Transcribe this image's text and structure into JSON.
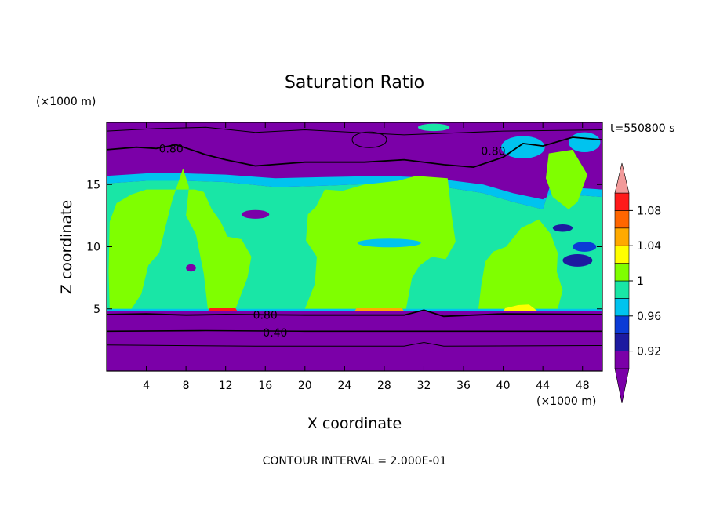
{
  "chart_data": {
    "type": "contour",
    "title": "Saturation Ratio",
    "xlabel": "X coordinate",
    "ylabel": "Z coordinate",
    "x_unit": "(×1000 m)",
    "y_unit": "(×1000 m)",
    "time_label": "t=550800 s",
    "footer": "CONTOUR INTERVAL = 2.000E-01",
    "xlim": [
      0,
      50
    ],
    "ylim": [
      0,
      20
    ],
    "x_ticks": [
      4,
      8,
      12,
      16,
      20,
      24,
      28,
      32,
      36,
      40,
      44,
      48
    ],
    "y_ticks": [
      5,
      10,
      15
    ],
    "contour_labels": [
      {
        "text": "0.80",
        "x": 6.5,
        "z": 17.9
      },
      {
        "text": "0.80",
        "x": 39.0,
        "z": 17.7
      },
      {
        "text": "0.80",
        "x": 16.0,
        "z": 4.5
      },
      {
        "text": "0.40",
        "x": 17.0,
        "z": 3.1
      }
    ],
    "colorbar": {
      "levels": [
        0.9,
        0.92,
        0.94,
        0.96,
        0.98,
        1.0,
        1.02,
        1.04,
        1.06,
        1.08,
        1.1
      ],
      "colors": [
        "#7b00a8",
        "#1d1aa0",
        "#0b3bd6",
        "#00c3ef",
        "#19e6a6",
        "#7fff00",
        "#ffff00",
        "#ffaa00",
        "#ff6600",
        "#ff1a1a",
        "#f29a9a"
      ],
      "tick_labels": [
        "0.92",
        "0.96",
        "1",
        "1.04",
        "1.08"
      ],
      "tick_values": [
        0.92,
        0.96,
        1.0,
        1.04,
        1.08
      ]
    }
  }
}
